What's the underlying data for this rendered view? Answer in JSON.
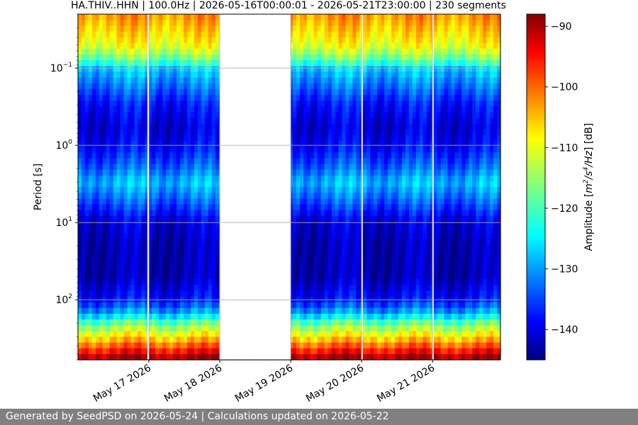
{
  "chart_data": {
    "type": "heatmap",
    "title": "HA.THIV..HHN | 100.0Hz | 2026-05-16T00:00:01 - 2026-05-21T23:00:00 | 230 segments",
    "ylabel": "Period [s]",
    "ylim": [
      600,
      0.02
    ],
    "yscale": "log",
    "y_ticks": [
      {
        "value": 0.1,
        "base": "10",
        "exp": "−1"
      },
      {
        "value": 1,
        "base": "10",
        "exp": "0"
      },
      {
        "value": 10,
        "base": "10",
        "exp": "1"
      },
      {
        "value": 100,
        "base": "10",
        "exp": "2"
      }
    ],
    "x_range": [
      "2026-05-16T00:00:01",
      "2026-05-21T23:00:00"
    ],
    "x_ticks": [
      {
        "value": "2026-05-17",
        "label": "May 17 2026"
      },
      {
        "value": "2026-05-18",
        "label": "May 18 2026"
      },
      {
        "value": "2026-05-19",
        "label": "May 19 2026"
      },
      {
        "value": "2026-05-20",
        "label": "May 20 2026"
      },
      {
        "value": "2026-05-21",
        "label": "May 21 2026"
      }
    ],
    "data_gaps": [
      {
        "start": "2026-05-16T23:30:00",
        "end": "2026-05-17T00:05:00"
      },
      {
        "start": "2026-05-17T23:55:00",
        "end": "2026-05-19T00:00:00"
      },
      {
        "start": "2026-05-19T23:55:00",
        "end": "2026-05-20T00:05:00"
      },
      {
        "start": "2026-05-20T23:55:00",
        "end": "2026-05-21T00:05:00"
      }
    ],
    "grid": true,
    "colormap": "jet",
    "colorbar": {
      "label_prefix": "Amplitude [",
      "label_unit": "m",
      "label_sup1": "2",
      "label_mid": "/s",
      "label_sup2": "4",
      "label_suffix": "/Hz",
      "label_end": "] [dB]",
      "range": [
        -145,
        -88
      ],
      "ticks": [
        -90,
        -100,
        -110,
        -120,
        -130,
        -140
      ]
    },
    "amplitude_profile": {
      "description_of_values": "approximate dB levels by period",
      "period_s": [
        0.02,
        0.05,
        0.08,
        0.1,
        0.3,
        0.6,
        1,
        2,
        3,
        5,
        10,
        20,
        50,
        100,
        150,
        200,
        300,
        400,
        600
      ],
      "amplitude_db": [
        -103,
        -110,
        -118,
        -126,
        -137,
        -140,
        -138,
        -132,
        -127,
        -132,
        -140,
        -142,
        -142,
        -137,
        -128,
        -118,
        -108,
        -100,
        -88
      ]
    }
  },
  "footer": {
    "text": "Generated by SeedPSD on 2026-05-24 | Calculations updated on 2026-05-22"
  }
}
